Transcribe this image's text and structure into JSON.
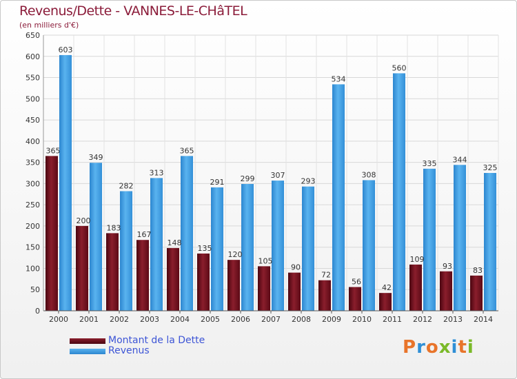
{
  "header": {
    "title": "Revenus/Dette - VANNES-LE-CHâTEL",
    "subtitle": "(en milliers d'€)"
  },
  "legend": {
    "dette_label": "Montant de la Dette",
    "revenus_label": "Revenus"
  },
  "logo": {
    "text": "Proxiti"
  },
  "colors": {
    "dette": "#6b0d1a",
    "revenus": "#3a9ae0",
    "title": "#8b1c3a",
    "legend_text": "#3d55d6"
  },
  "chart_data": {
    "type": "bar",
    "title": "Revenus/Dette - VANNES-LE-CHâTEL",
    "subtitle": "(en milliers d'€)",
    "categories": [
      "2000",
      "2001",
      "2002",
      "2003",
      "2004",
      "2005",
      "2006",
      "2007",
      "2008",
      "2009",
      "2010",
      "2011",
      "2012",
      "2013",
      "2014"
    ],
    "series": [
      {
        "name": "Montant de la Dette",
        "values": [
          365,
          200,
          183,
          167,
          148,
          135,
          120,
          105,
          90,
          72,
          56,
          42,
          109,
          93,
          83
        ]
      },
      {
        "name": "Revenus",
        "values": [
          603,
          349,
          282,
          313,
          365,
          291,
          299,
          307,
          293,
          534,
          308,
          560,
          335,
          344,
          325
        ]
      }
    ],
    "ylim": [
      0,
      650
    ],
    "yticks": [
      0,
      50,
      100,
      150,
      200,
      250,
      300,
      350,
      400,
      450,
      500,
      550,
      600,
      650
    ],
    "grid": true,
    "legend_position": "bottom-left"
  }
}
